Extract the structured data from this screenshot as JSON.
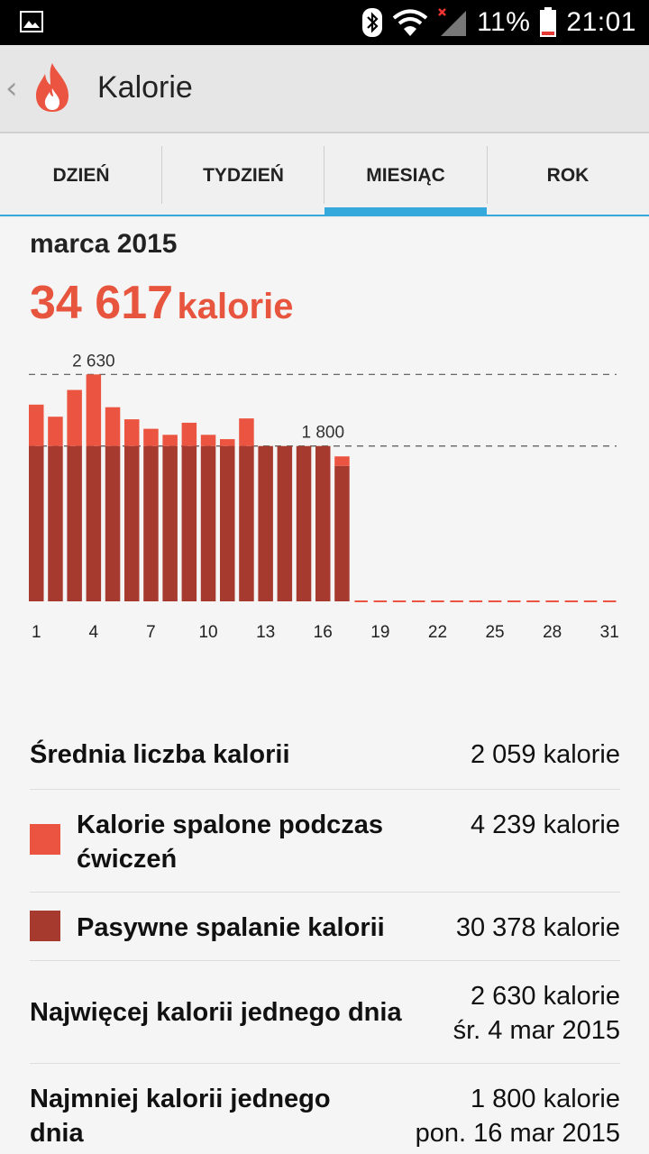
{
  "status_bar": {
    "battery": "11%",
    "time": "21:01"
  },
  "app_bar": {
    "title": "Kalorie"
  },
  "tabs": [
    {
      "label": "DZIEŃ",
      "active": false
    },
    {
      "label": "TYDZIEŃ",
      "active": false
    },
    {
      "label": "MIESIĄC",
      "active": true
    },
    {
      "label": "ROK",
      "active": false
    }
  ],
  "summary": {
    "period": "marca 2015",
    "total_value": "34 617",
    "total_unit": "kalorie"
  },
  "colors": {
    "accent": "#e8553f",
    "active_calories": "#eb5440",
    "passive_calories": "#a63a2e",
    "tab_indicator": "#35a8dc"
  },
  "chart_data": {
    "type": "bar",
    "stacked": true,
    "x": [
      1,
      2,
      3,
      4,
      5,
      6,
      7,
      8,
      9,
      10,
      11,
      12,
      13,
      14,
      15,
      16,
      17,
      18,
      19,
      20,
      21,
      22,
      23,
      24,
      25,
      26,
      27,
      28,
      29,
      30,
      31
    ],
    "x_tick_labels": [
      "1",
      "4",
      "7",
      "10",
      "13",
      "16",
      "19",
      "22",
      "25",
      "28",
      "31"
    ],
    "series": [
      {
        "name": "Pasywne spalanie kalorii",
        "values": [
          1800,
          1800,
          1800,
          1800,
          1800,
          1800,
          1800,
          1800,
          1800,
          1800,
          1800,
          1800,
          1800,
          1800,
          1800,
          1800,
          1570,
          0,
          0,
          0,
          0,
          0,
          0,
          0,
          0,
          0,
          0,
          0,
          0,
          0,
          0
        ]
      },
      {
        "name": "Kalorie spalone podczas ćwiczeń",
        "values": [
          480,
          340,
          650,
          830,
          450,
          310,
          200,
          130,
          270,
          130,
          80,
          320,
          0,
          0,
          0,
          0,
          110,
          0,
          0,
          0,
          0,
          0,
          0,
          0,
          0,
          0,
          0,
          0,
          0,
          0,
          0
        ]
      }
    ],
    "reference_lines": [
      {
        "value": 2630,
        "label": "2 630"
      },
      {
        "value": 1800,
        "label": "1 800"
      }
    ],
    "ylim": [
      0,
      2800
    ]
  },
  "stats": {
    "average": {
      "label": "Średnia liczba kalorii",
      "value": "2 059 kalorie"
    },
    "active": {
      "label_line1": "Kalorie spalone podczas",
      "label_line2": "ćwiczeń",
      "value": "4 239 kalorie"
    },
    "passive": {
      "label": "Pasywne spalanie kalorii",
      "value": "30 378 kalorie"
    },
    "max": {
      "label": "Najwięcej kalorii jednego dnia",
      "value": "2 630 kalorie",
      "date": "śr. 4 mar 2015"
    },
    "min": {
      "label_line1": "Najmniej kalorii jednego",
      "label_line2": "dnia",
      "value": "1 800 kalorie",
      "date": "pon. 16 mar 2015"
    }
  }
}
